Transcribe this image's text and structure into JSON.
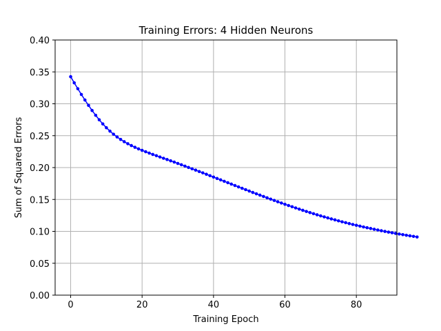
{
  "chart_data": {
    "type": "line",
    "title": "Training Errors: 4 Hidden Neurons",
    "xlabel": "Training Epoch",
    "ylabel": "Sum of Squared Errors",
    "xlim": [
      -4.35,
      91.35
    ],
    "ylim": [
      0.0,
      0.4
    ],
    "xticks": [
      0,
      20,
      40,
      60,
      80
    ],
    "xtick_labels": [
      "0",
      "20",
      "40",
      "60",
      "80"
    ],
    "yticks": [
      0.0,
      0.05,
      0.1,
      0.15,
      0.2,
      0.25,
      0.3,
      0.35,
      0.4
    ],
    "ytick_labels": [
      "0.00",
      "0.05",
      "0.10",
      "0.15",
      "0.20",
      "0.25",
      "0.30",
      "0.35",
      "0.40"
    ],
    "grid": true,
    "line_color": "#0000ff",
    "marker": "circle",
    "series": [
      {
        "values": [
          0.3425,
          0.3329,
          0.3236,
          0.3146,
          0.3059,
          0.2975,
          0.2895,
          0.282,
          0.2749,
          0.2684,
          0.2625,
          0.2571,
          0.2523,
          0.248,
          0.2441,
          0.2406,
          0.2374,
          0.2345,
          0.2318,
          0.2293,
          0.227,
          0.2248,
          0.2227,
          0.2206,
          0.2186,
          0.2166,
          0.2146,
          0.2126,
          0.2106,
          0.2086,
          0.2065,
          0.2044,
          0.2023,
          0.2002,
          0.1981,
          0.196,
          0.1938,
          0.1917,
          0.1895,
          0.1873,
          0.1851,
          0.1829,
          0.1807,
          0.1785,
          0.1763,
          0.1741,
          0.1719,
          0.1697,
          0.1675,
          0.1654,
          0.1632,
          0.161,
          0.1589,
          0.1568,
          0.1547,
          0.1526,
          0.1505,
          0.1485,
          0.1464,
          0.1444,
          0.1424,
          0.1405,
          0.1386,
          0.1367,
          0.1348,
          0.133,
          0.1312,
          0.1294,
          0.1277,
          0.126,
          0.1243,
          0.1227,
          0.1211,
          0.1195,
          0.118,
          0.1165,
          0.115,
          0.1136,
          0.1122,
          0.1108,
          0.1095,
          0.1082,
          0.1069,
          0.1057,
          0.1045,
          0.1033,
          0.1021,
          0.101,
          0.0999,
          0.0988,
          0.0978,
          0.0968,
          0.0958,
          0.0948,
          0.0939,
          0.093,
          0.0921,
          0.0912
        ]
      }
    ]
  }
}
